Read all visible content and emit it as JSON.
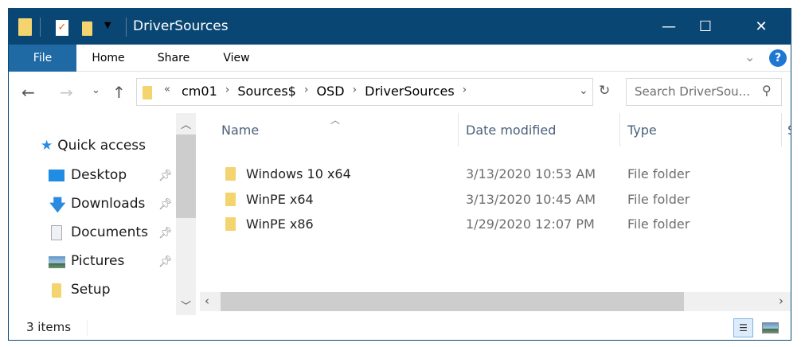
{
  "window": {
    "title": "DriverSources",
    "controls": {
      "minimize": "—",
      "maximize": "☐",
      "close": "✕"
    }
  },
  "ribbon": {
    "tabs": [
      "File",
      "Home",
      "Share",
      "View"
    ],
    "help": "?"
  },
  "address": {
    "overflow": "«",
    "crumbs": [
      "cm01",
      "Sources$",
      "OSD",
      "DriverSources"
    ]
  },
  "search": {
    "placeholder": "Search DriverSou..."
  },
  "nav": {
    "quick_access": "Quick access",
    "items": [
      {
        "label": "Desktop",
        "icon": "desktop-icon",
        "pinned": true
      },
      {
        "label": "Downloads",
        "icon": "downloads-icon",
        "pinned": true
      },
      {
        "label": "Documents",
        "icon": "documents-icon",
        "pinned": true
      },
      {
        "label": "Pictures",
        "icon": "pictures-icon",
        "pinned": true
      },
      {
        "label": "Setup",
        "icon": "folder-icon",
        "pinned": false
      }
    ]
  },
  "columns": [
    "Name",
    "Date modified",
    "Type",
    "S"
  ],
  "files": [
    {
      "name": "Windows 10 x64",
      "date": "3/13/2020 10:53 AM",
      "type": "File folder"
    },
    {
      "name": "WinPE x64",
      "date": "3/13/2020 10:45 AM",
      "type": "File folder"
    },
    {
      "name": "WinPE x86",
      "date": "1/29/2020 12:07 PM",
      "type": "File folder"
    }
  ],
  "status": {
    "count": "3 items"
  },
  "colors": {
    "titlebar": "#0a4673",
    "file_tab": "#1f6aa5",
    "folder": "#f3d46e",
    "help": "#1e77d3"
  }
}
